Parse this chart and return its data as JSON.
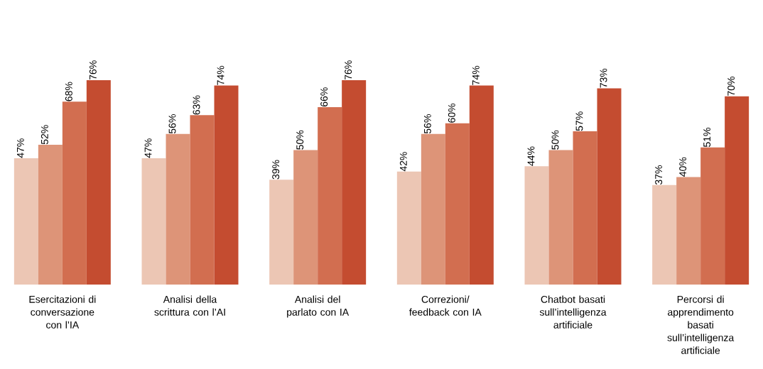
{
  "chart_data": {
    "type": "bar",
    "categories": [
      "Esercitazioni di conversazione con l’IA",
      "Analisi della scrittura con l’AI",
      "Analisi del parlato con IA",
      "Correzioni/ feedback con IA",
      "Chatbot basati sull’intelligenza artificiale",
      "Percorsi di apprendimento basati sull’intelligenza artificiale"
    ],
    "series": [
      {
        "color": "#ecc6b4",
        "values": [
          47,
          47,
          39,
          42,
          44,
          37
        ],
        "value_labels": [
          "47%",
          "47%",
          "39%",
          "42%",
          "44%",
          "37%"
        ]
      },
      {
        "color": "#dd9478",
        "values": [
          52,
          56,
          50,
          56,
          50,
          40
        ],
        "value_labels": [
          "52%",
          "56%",
          "50%",
          "56%",
          "50%",
          "40%"
        ]
      },
      {
        "color": "#d26e50",
        "values": [
          68,
          63,
          66,
          60,
          57,
          51
        ],
        "value_labels": [
          "68%",
          "63%",
          "66%",
          "60%",
          "57%",
          "51%"
        ]
      },
      {
        "color": "#c44c30",
        "values": [
          76,
          74,
          76,
          74,
          73,
          70
        ],
        "value_labels": [
          "76%",
          "74%",
          "76%",
          "74%",
          "73%",
          "70%"
        ]
      }
    ]
  }
}
